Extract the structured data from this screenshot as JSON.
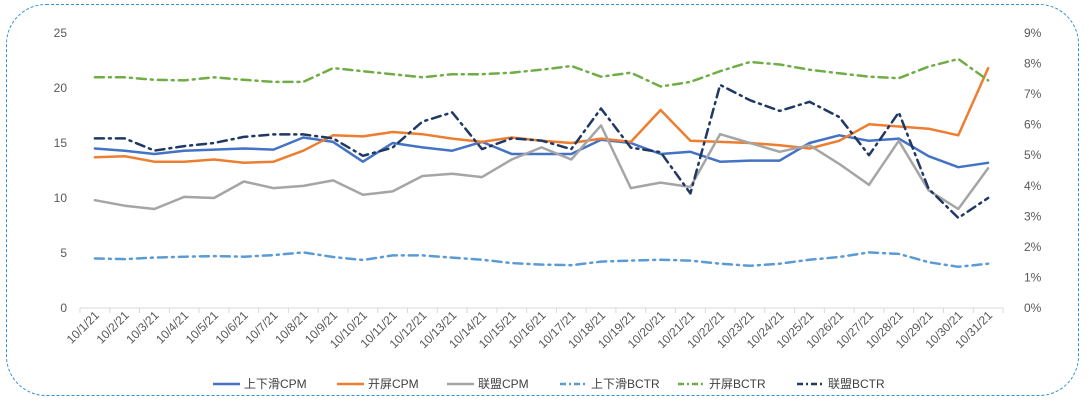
{
  "chart_data": {
    "type": "line",
    "title": "",
    "categories": [
      "10/1/21",
      "10/2/21",
      "10/3/21",
      "10/4/21",
      "10/5/21",
      "10/6/21",
      "10/7/21",
      "10/8/21",
      "10/9/21",
      "10/10/21",
      "10/11/21",
      "10/12/21",
      "10/13/21",
      "10/14/21",
      "10/15/21",
      "10/16/21",
      "10/17/21",
      "10/18/21",
      "10/19/21",
      "10/20/21",
      "10/21/21",
      "10/22/21",
      "10/23/21",
      "10/24/21",
      "10/25/21",
      "10/26/21",
      "10/27/21",
      "10/28/21",
      "10/29/21",
      "10/30/21",
      "10/31/21"
    ],
    "y_left": {
      "ticks": [
        "0",
        "5",
        "10",
        "15",
        "20",
        "25"
      ],
      "range": [
        0,
        25
      ]
    },
    "y_right": {
      "ticks": [
        "0%",
        "1%",
        "2%",
        "3%",
        "4%",
        "5%",
        "6%",
        "7%",
        "8%",
        "9%"
      ],
      "range": [
        0,
        9
      ]
    },
    "grid": false,
    "legend_position": "bottom",
    "series": [
      {
        "name": "上下滑CPM",
        "axis": "left",
        "style": "solid",
        "color": "#4472c4",
        "values": [
          14.5,
          14.3,
          14.0,
          14.3,
          14.4,
          14.5,
          14.4,
          15.5,
          15.1,
          13.3,
          15.0,
          14.6,
          14.3,
          15.1,
          14.0,
          14.0,
          14.0,
          15.3,
          15.0,
          14.0,
          14.2,
          13.3,
          13.4,
          13.4,
          15.0,
          15.7,
          15.2,
          15.4,
          13.8,
          12.8,
          13.2
        ]
      },
      {
        "name": "开屏CPM",
        "axis": "left",
        "style": "solid",
        "color": "#ed7d31",
        "values": [
          13.7,
          13.8,
          13.3,
          13.3,
          13.5,
          13.2,
          13.3,
          14.3,
          15.7,
          15.6,
          16.0,
          15.8,
          15.4,
          15.1,
          15.5,
          15.2,
          15.0,
          15.4,
          15.1,
          18.0,
          15.2,
          15.1,
          15.0,
          14.8,
          14.5,
          15.2,
          16.7,
          16.5,
          16.3,
          15.7,
          21.8
        ]
      },
      {
        "name": "联盟CPM",
        "axis": "left",
        "style": "solid",
        "color": "#a5a5a5",
        "values": [
          9.8,
          9.3,
          9.0,
          10.1,
          10.0,
          11.5,
          10.9,
          11.1,
          11.6,
          10.3,
          10.6,
          12.0,
          12.2,
          11.9,
          13.5,
          14.6,
          13.5,
          16.6,
          10.9,
          11.4,
          11.0,
          15.8,
          15.0,
          14.2,
          14.8,
          13.1,
          11.2,
          15.2,
          10.7,
          9.0,
          12.7
        ]
      },
      {
        "name": "上下滑BCTR",
        "axis": "right",
        "style": "dashdot",
        "color": "#5b9bd5",
        "values": [
          1.62,
          1.6,
          1.65,
          1.68,
          1.7,
          1.68,
          1.73,
          1.82,
          1.67,
          1.57,
          1.72,
          1.72,
          1.65,
          1.58,
          1.47,
          1.42,
          1.4,
          1.52,
          1.55,
          1.58,
          1.55,
          1.45,
          1.38,
          1.45,
          1.58,
          1.67,
          1.82,
          1.77,
          1.5,
          1.35,
          1.45
        ]
      },
      {
        "name": "开屏BCTR",
        "axis": "right",
        "style": "dashdot",
        "color": "#70ad47",
        "values": [
          7.55,
          7.55,
          7.47,
          7.45,
          7.55,
          7.47,
          7.4,
          7.4,
          7.85,
          7.75,
          7.65,
          7.55,
          7.65,
          7.65,
          7.7,
          7.8,
          7.92,
          7.57,
          7.7,
          7.25,
          7.4,
          7.75,
          8.05,
          7.97,
          7.8,
          7.68,
          7.57,
          7.52,
          7.9,
          8.15,
          7.45
        ]
      },
      {
        "name": "联盟BCTR",
        "axis": "right",
        "style": "dashdot",
        "color": "#203864",
        "values": [
          5.55,
          5.55,
          5.15,
          5.3,
          5.4,
          5.6,
          5.68,
          5.68,
          5.55,
          4.98,
          5.25,
          6.1,
          6.4,
          5.2,
          5.55,
          5.48,
          5.2,
          6.53,
          5.25,
          5.1,
          3.75,
          7.3,
          6.8,
          6.45,
          6.75,
          6.25,
          5.0,
          6.4,
          3.9,
          2.95,
          3.6
        ]
      }
    ]
  }
}
